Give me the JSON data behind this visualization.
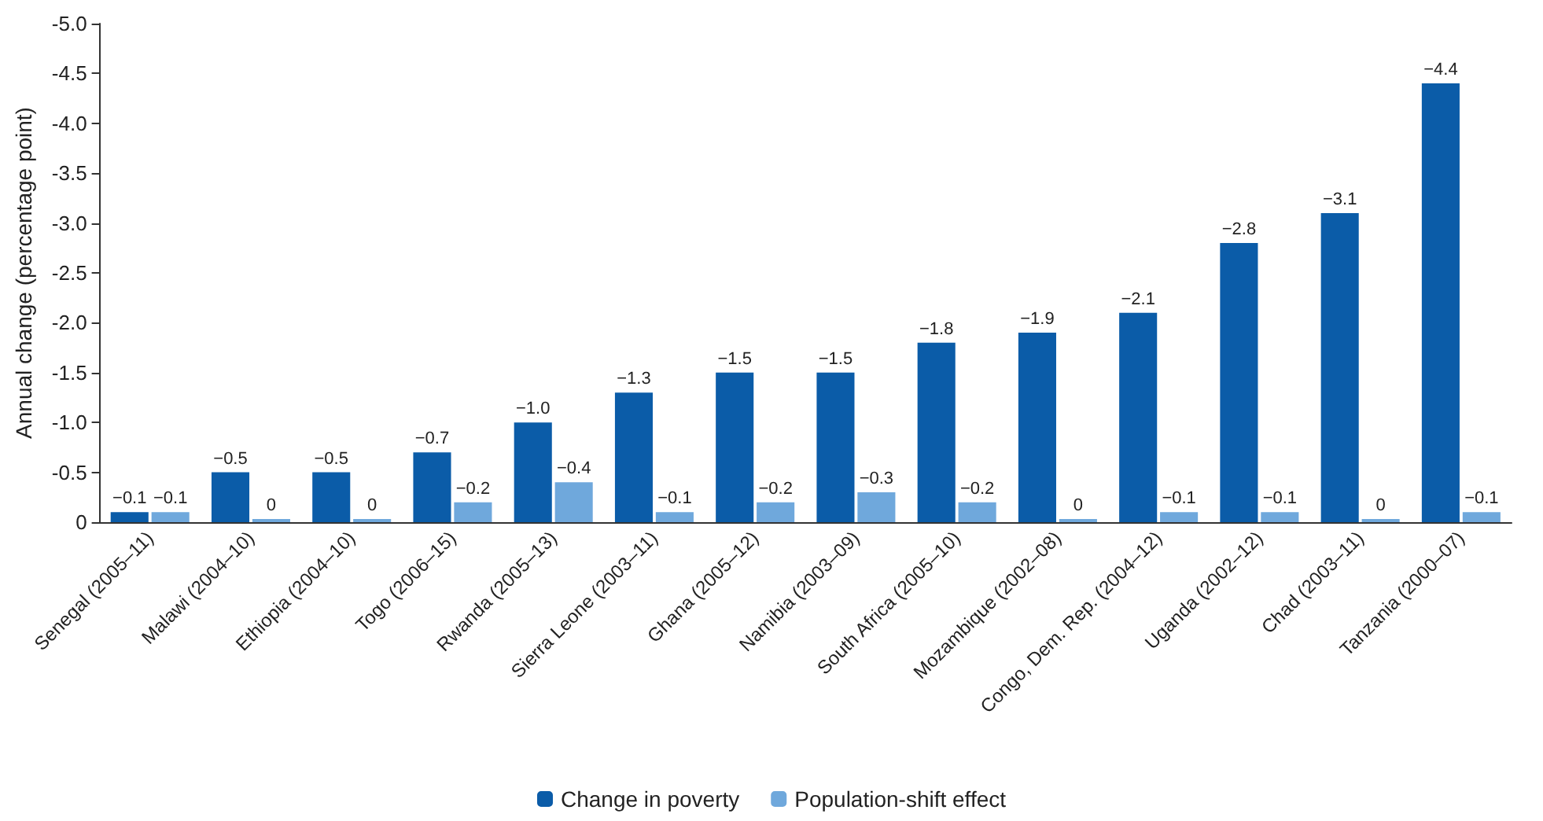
{
  "chart_data": {
    "type": "bar",
    "ylabel": "Annual change (percentage point)",
    "categories": [
      "Senegal (2005–11)",
      "Malawi (2004–10)",
      "Ethiopia (2004–10)",
      "Togo (2006–15)",
      "Rwanda (2005–13)",
      "Sierra Leone (2003–11)",
      "Ghana (2005–12)",
      "Namibia (2003–09)",
      "South Africa (2005–10)",
      "Mozambique (2002–08)",
      "Congo, Dem. Rep. (2004–12)",
      "Uganda (2002–12)",
      "Chad (2003–11)",
      "Tanzania (2000–07)"
    ],
    "series": [
      {
        "name": "Change in poverty",
        "color": "#0b5ca8",
        "values": [
          -0.1,
          -0.5,
          -0.5,
          -0.7,
          -1.0,
          -1.3,
          -1.5,
          -1.5,
          -1.8,
          -1.9,
          -2.1,
          -2.8,
          -3.1,
          -4.4
        ],
        "value_labels": [
          "−0.1",
          "−0.5",
          "−0.5",
          "−0.7",
          "−1.0",
          "−1.3",
          "−1.5",
          "−1.5",
          "−1.8",
          "−1.9",
          "−2.1",
          "−2.8",
          "−3.1",
          "−4.4"
        ]
      },
      {
        "name": "Population-shift effect",
        "color": "#6fa8dc",
        "values": [
          -0.1,
          0,
          0,
          -0.2,
          -0.4,
          -0.1,
          -0.2,
          -0.3,
          -0.2,
          0,
          -0.1,
          -0.1,
          0,
          -0.1
        ],
        "value_labels": [
          "−0.1",
          "0",
          "0",
          "−0.2",
          "−0.4",
          "−0.1",
          "−0.2",
          "−0.3",
          "−0.2",
          "0",
          "−0.1",
          "−0.1",
          "0",
          "−0.1"
        ]
      }
    ],
    "ylim": [
      0,
      -5.0
    ],
    "yticks": [
      0,
      {
        "value": -0.5,
        "label": "-0.5"
      },
      {
        "value": -1.0,
        "label": "-1.0"
      },
      {
        "value": -1.5,
        "label": "-1.5"
      },
      {
        "value": -2.0,
        "label": "-2.0"
      },
      {
        "value": -2.5,
        "label": "-2.5"
      },
      {
        "value": -3.0,
        "label": "-3.0"
      },
      {
        "value": -3.5,
        "label": "-3.5"
      },
      {
        "value": -4.0,
        "label": "-4.0"
      },
      {
        "value": -4.5,
        "label": "-4.5"
      },
      {
        "value": -5.0,
        "label": "-5.0"
      }
    ],
    "grid": false,
    "legend": "bottom"
  }
}
